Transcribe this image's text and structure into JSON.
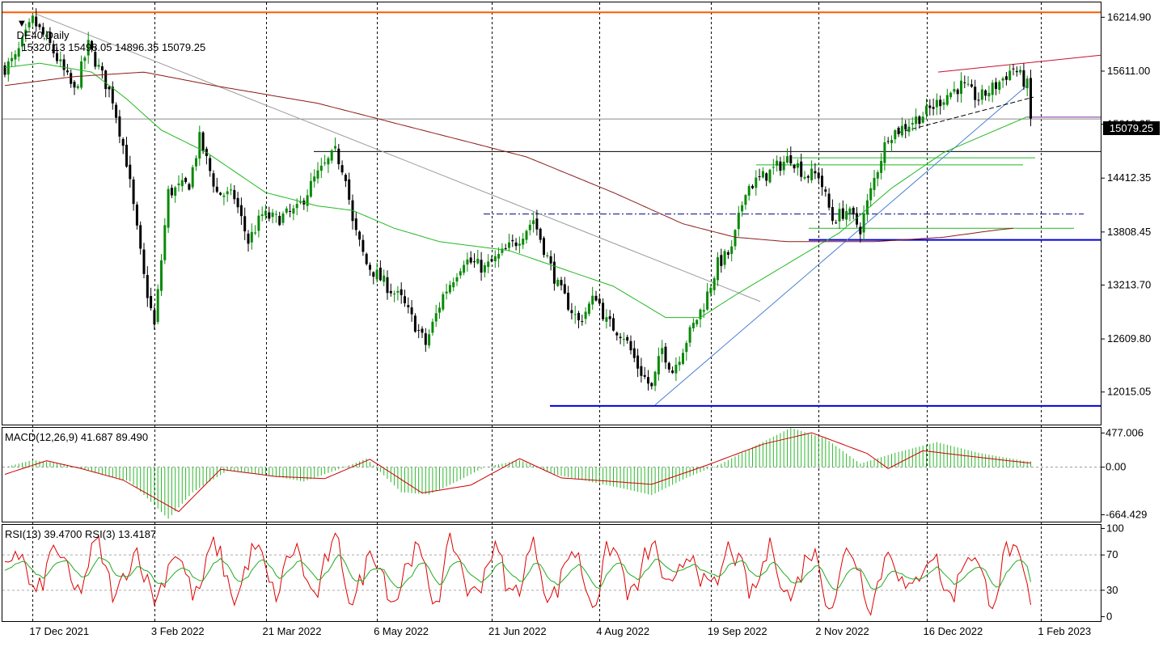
{
  "header": {
    "symbol_timeframe": "DE40,Daily",
    "ohlc": "15320.13 15498.05 14896.35 15079.25"
  },
  "price_box": "15079.25",
  "colors": {
    "bull": "#0a8a0a",
    "bear": "#000000",
    "ma_fast": "#22b822",
    "ma_slow": "#8b1a1a",
    "resistance": "#ff5a00",
    "support": "#0000dd",
    "macd_hist": "#2db82d",
    "macd_signal": "#cc0000",
    "rsi_fast": "#dd0000",
    "rsi_slow": "#22aa22"
  },
  "chart_data": [
    {
      "type": "candlestick",
      "panel": "price",
      "ylim": [
        11650,
        16390
      ],
      "x_tick_labels": [
        "17 Dec 2021",
        "3 Feb 2022",
        "21 Mar 2022",
        "6 May 2022",
        "21 Jun 2022",
        "4 Aug 2022",
        "19 Sep 2022",
        "2 Nov 2022",
        "16 Dec 2022",
        "1 Feb 2023"
      ],
      "y_tick_values": [
        12015.05,
        12609.8,
        13213.7,
        13808.45,
        14412.35,
        15016.25,
        15611.0,
        16214.9
      ],
      "y_tick_labels": [
        "12015.05",
        "12609.80",
        "13213.70",
        "13808.45",
        "14412.35",
        "15016.25",
        "15611.00",
        "16214.90"
      ],
      "last_price": 15079.25,
      "close_anchors": [
        [
          0,
          15650
        ],
        [
          3,
          15750
        ],
        [
          8,
          16180
        ],
        [
          13,
          15900
        ],
        [
          20,
          15380
        ],
        [
          24,
          15900
        ],
        [
          31,
          15300
        ],
        [
          35,
          14600
        ],
        [
          40,
          13300
        ],
        [
          43,
          12750
        ],
        [
          47,
          14250
        ],
        [
          53,
          14350
        ],
        [
          56,
          14850
        ],
        [
          61,
          14250
        ],
        [
          66,
          14200
        ],
        [
          70,
          13700
        ],
        [
          74,
          14000
        ],
        [
          78,
          13950
        ],
        [
          84,
          14050
        ],
        [
          89,
          14400
        ],
        [
          95,
          14700
        ],
        [
          98,
          14450
        ],
        [
          100,
          13900
        ],
        [
          104,
          13450
        ],
        [
          110,
          13200
        ],
        [
          114,
          13050
        ],
        [
          121,
          12550
        ],
        [
          126,
          13100
        ],
        [
          132,
          13500
        ],
        [
          138,
          13400
        ],
        [
          147,
          13700
        ],
        [
          152,
          13950
        ],
        [
          159,
          13200
        ],
        [
          165,
          12800
        ],
        [
          170,
          13100
        ],
        [
          173,
          12800
        ],
        [
          178,
          12650
        ],
        [
          182,
          12300
        ],
        [
          186,
          12050
        ],
        [
          189,
          12500
        ],
        [
          192,
          12250
        ],
        [
          196,
          12600
        ],
        [
          201,
          13000
        ],
        [
          205,
          13450
        ],
        [
          209,
          13600
        ],
        [
          213,
          14300
        ],
        [
          219,
          14450
        ],
        [
          226,
          14650
        ],
        [
          230,
          14450
        ],
        [
          234,
          14450
        ],
        [
          238,
          13950
        ],
        [
          242,
          14050
        ],
        [
          246,
          13850
        ],
        [
          250,
          14400
        ],
        [
          254,
          14900
        ],
        [
          257,
          14950
        ],
        [
          261,
          15050
        ],
        [
          265,
          15150
        ],
        [
          271,
          15350
        ],
        [
          275,
          15450
        ],
        [
          280,
          15300
        ],
        [
          285,
          15450
        ],
        [
          290,
          15650
        ],
        [
          294,
          15450
        ]
      ],
      "support_lines": [
        11860,
        13720
      ],
      "resistance_line": 16270,
      "horizontal_levels": [
        14710,
        14010,
        13850,
        14640,
        14560
      ],
      "moving_averages": [
        {
          "role": "fast",
          "anchors": [
            [
              0,
              15650
            ],
            [
              10,
              15700
            ],
            [
              25,
              15600
            ],
            [
              35,
              15300
            ],
            [
              45,
              14950
            ],
            [
              58,
              14700
            ],
            [
              75,
              14250
            ],
            [
              90,
              14100
            ],
            [
              100,
              14050
            ],
            [
              112,
              13850
            ],
            [
              125,
              13700
            ],
            [
              145,
              13600
            ],
            [
              160,
              13400
            ],
            [
              175,
              13200
            ],
            [
              190,
              12850
            ],
            [
              200,
              12850
            ],
            [
              210,
              13100
            ],
            [
              225,
              13450
            ],
            [
              240,
              13800
            ],
            [
              255,
              14300
            ],
            [
              270,
              14700
            ],
            [
              285,
              14950
            ],
            [
              294,
              15100
            ]
          ]
        },
        {
          "role": "slow",
          "anchors": [
            [
              0,
              15450
            ],
            [
              20,
              15550
            ],
            [
              40,
              15600
            ],
            [
              60,
              15450
            ],
            [
              90,
              15250
            ],
            [
              120,
              14950
            ],
            [
              150,
              14650
            ],
            [
              175,
              14250
            ],
            [
              195,
              13900
            ],
            [
              210,
              13750
            ],
            [
              225,
              13700
            ],
            [
              250,
              13700
            ],
            [
              270,
              13750
            ],
            [
              285,
              13830
            ],
            [
              290,
              13850
            ]
          ]
        }
      ]
    },
    {
      "type": "histogram+line",
      "panel": "MACD",
      "label": "MACD(12,26,9) 41.687 89.490",
      "ylim": [
        -760,
        560
      ],
      "y_tick_values": [
        477.006,
        0.0,
        -664.429
      ],
      "y_tick_labels": [
        "477.006",
        "0.00",
        "-664.429"
      ],
      "histogram_anchors": [
        [
          0,
          0
        ],
        [
          8,
          100
        ],
        [
          16,
          50
        ],
        [
          24,
          -50
        ],
        [
          36,
          -200
        ],
        [
          47,
          -720
        ],
        [
          54,
          -350
        ],
        [
          64,
          -50
        ],
        [
          74,
          -100
        ],
        [
          86,
          -200
        ],
        [
          96,
          -30
        ],
        [
          104,
          120
        ],
        [
          114,
          -350
        ],
        [
          122,
          -380
        ],
        [
          130,
          -200
        ],
        [
          138,
          0
        ],
        [
          148,
          100
        ],
        [
          158,
          -100
        ],
        [
          168,
          -200
        ],
        [
          178,
          -300
        ],
        [
          186,
          -390
        ],
        [
          196,
          -150
        ],
        [
          206,
          50
        ],
        [
          216,
          300
        ],
        [
          226,
          550
        ],
        [
          236,
          400
        ],
        [
          246,
          50
        ],
        [
          256,
          200
        ],
        [
          268,
          350
        ],
        [
          280,
          200
        ],
        [
          294,
          80
        ]
      ],
      "signal_anchors": [
        [
          0,
          -100
        ],
        [
          12,
          90
        ],
        [
          22,
          -20
        ],
        [
          34,
          -180
        ],
        [
          50,
          -620
        ],
        [
          62,
          -30
        ],
        [
          78,
          -130
        ],
        [
          92,
          -160
        ],
        [
          105,
          110
        ],
        [
          120,
          -360
        ],
        [
          134,
          -250
        ],
        [
          148,
          120
        ],
        [
          160,
          -150
        ],
        [
          175,
          -200
        ],
        [
          186,
          -240
        ],
        [
          202,
          30
        ],
        [
          218,
          320
        ],
        [
          232,
          480
        ],
        [
          248,
          190
        ],
        [
          254,
          -20
        ],
        [
          264,
          230
        ],
        [
          276,
          160
        ],
        [
          294,
          60
        ]
      ]
    },
    {
      "type": "line",
      "panel": "RSI",
      "label": "RSI(13) 39.4700 RSI(3) 13.4187",
      "ylim": [
        -5,
        105
      ],
      "y_tick_values": [
        100,
        70,
        30,
        0
      ],
      "y_tick_labels": [
        "100",
        "70",
        "30",
        "0"
      ],
      "series": [
        {
          "name": "RSI(13)",
          "value": 39.47
        },
        {
          "name": "RSI(3)",
          "value": 13.4187
        }
      ]
    }
  ]
}
